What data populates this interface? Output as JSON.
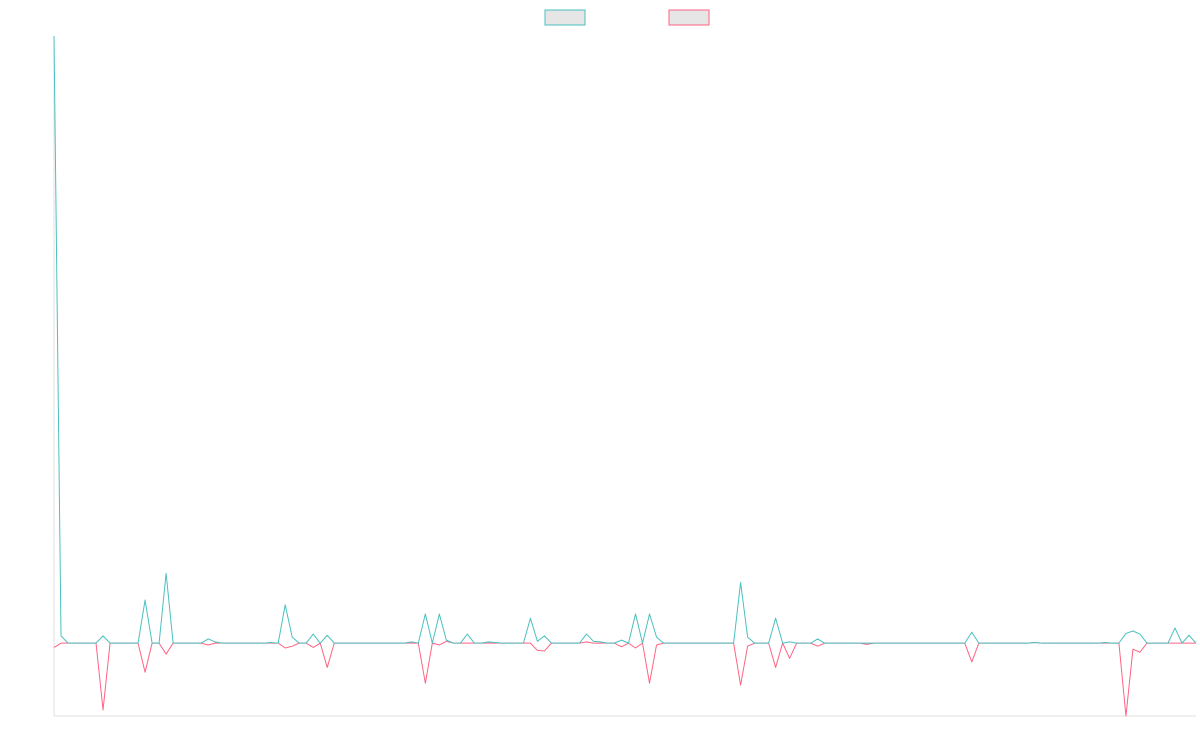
{
  "chart_data": {
    "type": "line",
    "legend": "top",
    "grid": false,
    "ylim": [
      -12,
      100
    ],
    "series": [
      {
        "color": "#4bc0c0",
        "values": [
          100,
          1.2,
          0,
          0,
          0,
          0,
          0,
          1.2,
          0,
          0,
          0,
          0,
          0,
          7.1,
          0,
          0,
          11.5,
          0,
          0,
          0,
          0,
          0,
          0.7,
          0.2,
          0,
          0,
          0,
          0,
          0,
          0,
          0,
          0.1,
          0,
          6.3,
          1,
          0,
          0,
          1.5,
          0,
          1.3,
          0,
          0,
          0,
          0,
          0,
          0,
          0,
          0,
          0,
          0,
          0,
          0.2,
          0,
          4.8,
          0,
          4.8,
          0.5,
          0,
          0,
          1.5,
          0,
          0,
          0.2,
          0.1,
          0,
          0,
          0,
          0,
          4.1,
          0.3,
          1.2,
          0,
          0,
          0,
          0,
          0,
          1.5,
          0.3,
          0.2,
          0,
          0,
          0.5,
          0,
          4.8,
          0,
          4.8,
          1,
          0,
          0,
          0,
          0,
          0,
          0,
          0,
          0,
          0,
          0,
          0,
          10,
          1,
          0,
          0,
          0,
          4.1,
          0,
          0.2,
          0,
          0,
          0,
          0.7,
          0,
          0,
          0,
          0,
          0,
          0,
          0,
          0,
          0,
          0,
          0,
          0,
          0,
          0,
          0,
          0,
          0,
          0,
          0,
          0,
          0,
          1.8,
          0,
          0,
          0,
          0,
          0,
          0,
          0,
          0,
          0.1,
          0,
          0,
          0,
          0,
          0,
          0,
          0,
          0,
          0,
          0.1,
          0,
          0,
          1.6,
          2,
          1.5,
          0,
          0,
          0,
          0,
          2.5,
          0,
          1.3,
          0
        ]
      },
      {
        "color": "#ff6384",
        "values": [
          -0.7,
          0,
          0,
          0,
          0,
          0,
          0,
          -11,
          0,
          0,
          0,
          0,
          0,
          -4.8,
          0,
          0,
          -1.8,
          0,
          0,
          0,
          0,
          0,
          -0.3,
          0,
          0,
          0,
          0,
          0,
          0,
          0,
          0,
          0,
          0,
          -0.8,
          -0.5,
          0,
          0,
          -0.7,
          0,
          -4,
          0,
          0,
          0,
          0,
          0,
          0,
          0,
          0,
          0,
          0,
          0,
          0,
          0,
          -6.6,
          0,
          -0.3,
          0.3,
          0,
          0,
          0,
          0,
          0,
          0,
          0,
          0,
          0,
          0,
          0,
          0,
          -1.2,
          -1.3,
          0,
          0,
          0,
          0,
          0,
          0.2,
          0,
          0,
          0,
          0,
          -0.6,
          0,
          -0.8,
          0,
          -6.6,
          -0.3,
          0,
          0,
          0,
          0,
          0,
          0,
          0,
          0,
          0,
          0,
          0,
          -6.9,
          -0.5,
          0,
          0,
          0,
          -4,
          0,
          -2.5,
          0,
          0,
          0,
          -0.5,
          0,
          0,
          0,
          0,
          0,
          0,
          -0.2,
          0,
          0,
          0,
          0,
          0,
          0,
          0,
          0,
          0,
          0,
          0,
          0,
          0,
          0,
          -3.1,
          0,
          0,
          0,
          0,
          0,
          0,
          0,
          0,
          0.1,
          0,
          0,
          0,
          0,
          0,
          0,
          0,
          0,
          0,
          0,
          0,
          0,
          -12,
          -1,
          -1.5,
          0,
          0,
          0,
          0,
          0,
          0,
          0,
          0
        ]
      }
    ]
  }
}
